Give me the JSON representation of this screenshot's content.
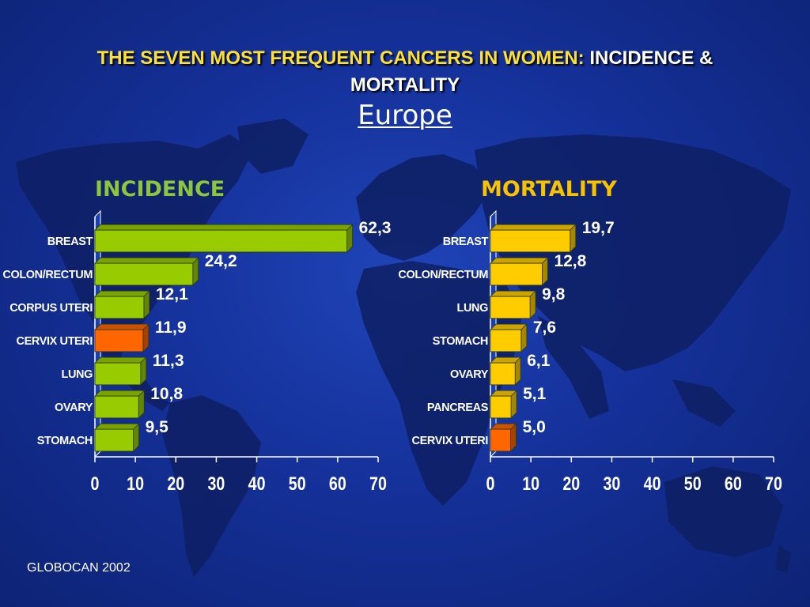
{
  "title": {
    "highlight": "THE SEVEN MOST FREQUENT CANCERS IN WOMEN:",
    "rest": "INCIDENCE &",
    "line2": "MORTALITY",
    "subtitle": "Europe"
  },
  "source": "GLOBOCAN 2002",
  "colors": {
    "background": "#15319a",
    "incidence_bar": "#99cc00",
    "mortality_bar": "#ffcc00",
    "highlight_bar": "#ff6600",
    "title_highlight": "#ffe033",
    "incidence_heading": "#8cc63e",
    "mortality_heading": "#f7c200"
  },
  "chart_data": [
    {
      "type": "bar",
      "orientation": "horizontal",
      "title": "INCIDENCE",
      "categories": [
        "BREAST",
        "COLON/RECTUM",
        "CORPUS UTERI",
        "CERVIX UTERI",
        "LUNG",
        "OVARY",
        "STOMACH"
      ],
      "values": [
        62.3,
        24.2,
        12.1,
        11.9,
        11.3,
        10.8,
        9.5
      ],
      "value_labels": [
        "62,3",
        "24,2",
        "12,1",
        "11,9",
        "11,3",
        "10,8",
        "9,5"
      ],
      "highlight_categories": [
        "CERVIX UTERI"
      ],
      "xlim": [
        0,
        70
      ],
      "xticks": [
        0,
        10,
        20,
        30,
        40,
        50,
        60,
        70
      ],
      "grid": false
    },
    {
      "type": "bar",
      "orientation": "horizontal",
      "title": "MORTALITY",
      "categories": [
        "BREAST",
        "COLON/RECTUM",
        "LUNG",
        "STOMACH",
        "OVARY",
        "PANCREAS",
        "CERVIX UTERI"
      ],
      "values": [
        19.7,
        12.8,
        9.8,
        7.6,
        6.1,
        5.1,
        5.0
      ],
      "value_labels": [
        "19,7",
        "12,8",
        "9,8",
        "7,6",
        "6,1",
        "5,1",
        "5,0"
      ],
      "highlight_categories": [
        "CERVIX UTERI"
      ],
      "xlim": [
        0,
        70
      ],
      "xticks": [
        0,
        10,
        20,
        30,
        40,
        50,
        60,
        70
      ],
      "grid": false
    }
  ]
}
